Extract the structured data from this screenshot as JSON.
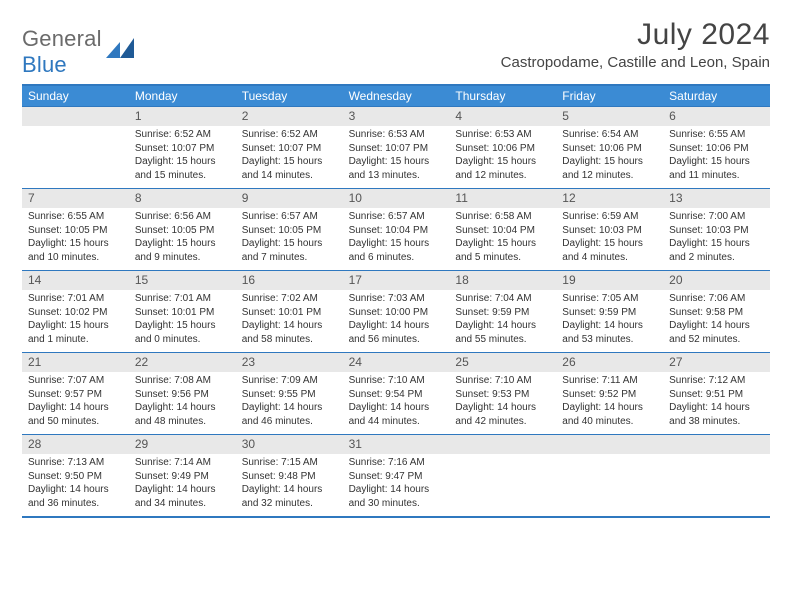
{
  "brand": {
    "part1": "General",
    "part2": "Blue"
  },
  "title": "July 2024",
  "location": "Castropodame, Castille and Leon, Spain",
  "colors": {
    "header_bg": "#3b8bd4",
    "border": "#2f78bf",
    "daynum_bg": "#e8e8e8",
    "text": "#333333",
    "title_text": "#444444",
    "logo_gray": "#6b6b6b",
    "logo_blue": "#2f78bf"
  },
  "day_headers": [
    "Sunday",
    "Monday",
    "Tuesday",
    "Wednesday",
    "Thursday",
    "Friday",
    "Saturday"
  ],
  "weeks": [
    {
      "nums": [
        "",
        "1",
        "2",
        "3",
        "4",
        "5",
        "6"
      ],
      "cells": [
        null,
        {
          "sr": "Sunrise: 6:52 AM",
          "ss": "Sunset: 10:07 PM",
          "dl1": "Daylight: 15 hours",
          "dl2": "and 15 minutes."
        },
        {
          "sr": "Sunrise: 6:52 AM",
          "ss": "Sunset: 10:07 PM",
          "dl1": "Daylight: 15 hours",
          "dl2": "and 14 minutes."
        },
        {
          "sr": "Sunrise: 6:53 AM",
          "ss": "Sunset: 10:07 PM",
          "dl1": "Daylight: 15 hours",
          "dl2": "and 13 minutes."
        },
        {
          "sr": "Sunrise: 6:53 AM",
          "ss": "Sunset: 10:06 PM",
          "dl1": "Daylight: 15 hours",
          "dl2": "and 12 minutes."
        },
        {
          "sr": "Sunrise: 6:54 AM",
          "ss": "Sunset: 10:06 PM",
          "dl1": "Daylight: 15 hours",
          "dl2": "and 12 minutes."
        },
        {
          "sr": "Sunrise: 6:55 AM",
          "ss": "Sunset: 10:06 PM",
          "dl1": "Daylight: 15 hours",
          "dl2": "and 11 minutes."
        }
      ]
    },
    {
      "nums": [
        "7",
        "8",
        "9",
        "10",
        "11",
        "12",
        "13"
      ],
      "cells": [
        {
          "sr": "Sunrise: 6:55 AM",
          "ss": "Sunset: 10:05 PM",
          "dl1": "Daylight: 15 hours",
          "dl2": "and 10 minutes."
        },
        {
          "sr": "Sunrise: 6:56 AM",
          "ss": "Sunset: 10:05 PM",
          "dl1": "Daylight: 15 hours",
          "dl2": "and 9 minutes."
        },
        {
          "sr": "Sunrise: 6:57 AM",
          "ss": "Sunset: 10:05 PM",
          "dl1": "Daylight: 15 hours",
          "dl2": "and 7 minutes."
        },
        {
          "sr": "Sunrise: 6:57 AM",
          "ss": "Sunset: 10:04 PM",
          "dl1": "Daylight: 15 hours",
          "dl2": "and 6 minutes."
        },
        {
          "sr": "Sunrise: 6:58 AM",
          "ss": "Sunset: 10:04 PM",
          "dl1": "Daylight: 15 hours",
          "dl2": "and 5 minutes."
        },
        {
          "sr": "Sunrise: 6:59 AM",
          "ss": "Sunset: 10:03 PM",
          "dl1": "Daylight: 15 hours",
          "dl2": "and 4 minutes."
        },
        {
          "sr": "Sunrise: 7:00 AM",
          "ss": "Sunset: 10:03 PM",
          "dl1": "Daylight: 15 hours",
          "dl2": "and 2 minutes."
        }
      ]
    },
    {
      "nums": [
        "14",
        "15",
        "16",
        "17",
        "18",
        "19",
        "20"
      ],
      "cells": [
        {
          "sr": "Sunrise: 7:01 AM",
          "ss": "Sunset: 10:02 PM",
          "dl1": "Daylight: 15 hours",
          "dl2": "and 1 minute."
        },
        {
          "sr": "Sunrise: 7:01 AM",
          "ss": "Sunset: 10:01 PM",
          "dl1": "Daylight: 15 hours",
          "dl2": "and 0 minutes."
        },
        {
          "sr": "Sunrise: 7:02 AM",
          "ss": "Sunset: 10:01 PM",
          "dl1": "Daylight: 14 hours",
          "dl2": "and 58 minutes."
        },
        {
          "sr": "Sunrise: 7:03 AM",
          "ss": "Sunset: 10:00 PM",
          "dl1": "Daylight: 14 hours",
          "dl2": "and 56 minutes."
        },
        {
          "sr": "Sunrise: 7:04 AM",
          "ss": "Sunset: 9:59 PM",
          "dl1": "Daylight: 14 hours",
          "dl2": "and 55 minutes."
        },
        {
          "sr": "Sunrise: 7:05 AM",
          "ss": "Sunset: 9:59 PM",
          "dl1": "Daylight: 14 hours",
          "dl2": "and 53 minutes."
        },
        {
          "sr": "Sunrise: 7:06 AM",
          "ss": "Sunset: 9:58 PM",
          "dl1": "Daylight: 14 hours",
          "dl2": "and 52 minutes."
        }
      ]
    },
    {
      "nums": [
        "21",
        "22",
        "23",
        "24",
        "25",
        "26",
        "27"
      ],
      "cells": [
        {
          "sr": "Sunrise: 7:07 AM",
          "ss": "Sunset: 9:57 PM",
          "dl1": "Daylight: 14 hours",
          "dl2": "and 50 minutes."
        },
        {
          "sr": "Sunrise: 7:08 AM",
          "ss": "Sunset: 9:56 PM",
          "dl1": "Daylight: 14 hours",
          "dl2": "and 48 minutes."
        },
        {
          "sr": "Sunrise: 7:09 AM",
          "ss": "Sunset: 9:55 PM",
          "dl1": "Daylight: 14 hours",
          "dl2": "and 46 minutes."
        },
        {
          "sr": "Sunrise: 7:10 AM",
          "ss": "Sunset: 9:54 PM",
          "dl1": "Daylight: 14 hours",
          "dl2": "and 44 minutes."
        },
        {
          "sr": "Sunrise: 7:10 AM",
          "ss": "Sunset: 9:53 PM",
          "dl1": "Daylight: 14 hours",
          "dl2": "and 42 minutes."
        },
        {
          "sr": "Sunrise: 7:11 AM",
          "ss": "Sunset: 9:52 PM",
          "dl1": "Daylight: 14 hours",
          "dl2": "and 40 minutes."
        },
        {
          "sr": "Sunrise: 7:12 AM",
          "ss": "Sunset: 9:51 PM",
          "dl1": "Daylight: 14 hours",
          "dl2": "and 38 minutes."
        }
      ]
    },
    {
      "nums": [
        "28",
        "29",
        "30",
        "31",
        "",
        "",
        ""
      ],
      "cells": [
        {
          "sr": "Sunrise: 7:13 AM",
          "ss": "Sunset: 9:50 PM",
          "dl1": "Daylight: 14 hours",
          "dl2": "and 36 minutes."
        },
        {
          "sr": "Sunrise: 7:14 AM",
          "ss": "Sunset: 9:49 PM",
          "dl1": "Daylight: 14 hours",
          "dl2": "and 34 minutes."
        },
        {
          "sr": "Sunrise: 7:15 AM",
          "ss": "Sunset: 9:48 PM",
          "dl1": "Daylight: 14 hours",
          "dl2": "and 32 minutes."
        },
        {
          "sr": "Sunrise: 7:16 AM",
          "ss": "Sunset: 9:47 PM",
          "dl1": "Daylight: 14 hours",
          "dl2": "and 30 minutes."
        },
        null,
        null,
        null
      ]
    }
  ]
}
